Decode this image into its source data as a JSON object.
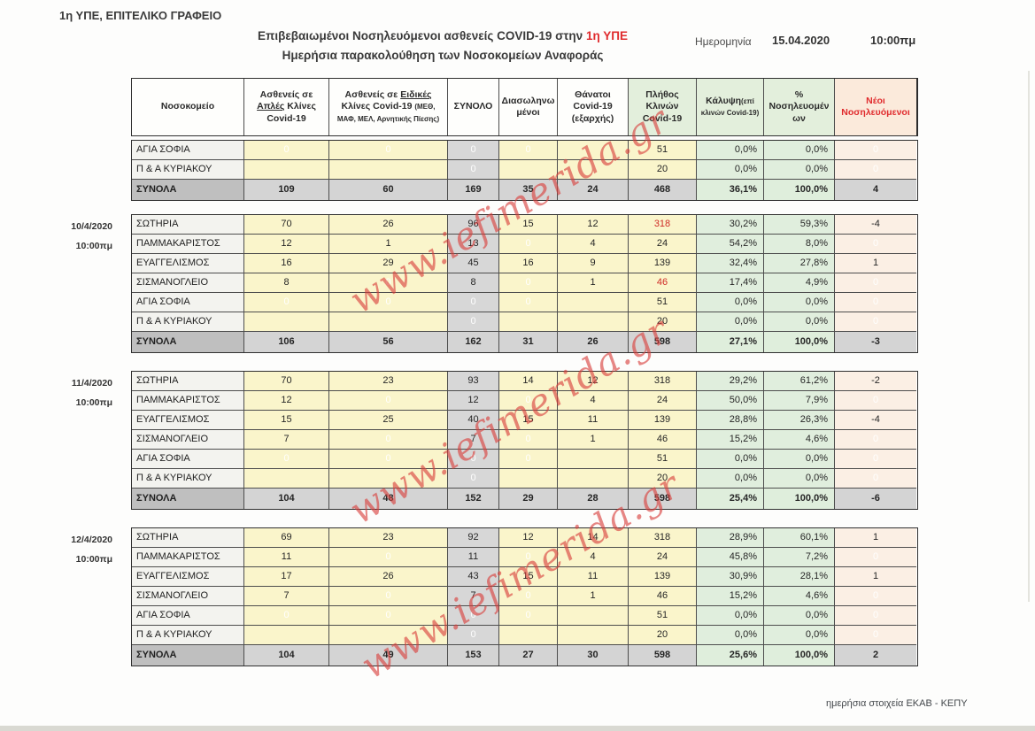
{
  "page": {
    "office": "1η ΥΠΕ, ΕΠΙΤΕΛΙΚΟ ΓΡΑΦΕΙΟ",
    "title_main": "Επιβεβαιωμένοι Νοσηλευόμενοι ασθενείς COVID-19 στην ",
    "title_highlight": "1η ΥΠΕ",
    "title_sub": "Ημερήσια παρακολούθηση  των Νοσοκομείων Αναφοράς",
    "date_label": "Ημερομηνία",
    "date_value": "15.04.2020",
    "time_value": "10:00πμ",
    "footer": "ημερήσια στοιχεία ΕΚΑΒ - ΚΕΠΥ",
    "watermark": "www.iefimerida.gr"
  },
  "colors": {
    "highlight_red": "#e02b2d",
    "watermark_red": "#d83e3a",
    "yellow_cell": "#faf5cb",
    "green_cell": "#e0eedd",
    "peach_cell": "#fbefe4",
    "grey_cell": "#d7d7d7"
  },
  "table": {
    "headers": [
      {
        "segs": [
          {
            "t": "Νοσοκομείο"
          }
        ],
        "style": "plain"
      },
      {
        "segs": [
          {
            "t": "Ασθενείς σε "
          },
          {
            "t": "Απλές",
            "u": true
          },
          {
            "t": " Κλίνες Covid-19"
          }
        ],
        "style": "plain"
      },
      {
        "segs": [
          {
            "t": "Ασθενείς σε "
          },
          {
            "t": "Ειδικές",
            "u": true
          },
          {
            "t": " Κλίνες Covid-19 "
          }
        ],
        "small": "(ΜΕΘ, ΜΑΦ, ΜΕΛ, Αρνητικής Πίεσης)",
        "style": "plain"
      },
      {
        "segs": [
          {
            "t": "ΣΥΝΟΛΟ"
          }
        ],
        "style": "plain"
      },
      {
        "segs": [
          {
            "t": "Διασωληνωμένοι"
          }
        ],
        "style": "plain"
      },
      {
        "segs": [
          {
            "t": "Θάνατοι Covid-19 (εξαρχής)"
          }
        ],
        "style": "plain"
      },
      {
        "segs": [
          {
            "t": "Πλήθος Κλινών Covid-19"
          }
        ],
        "style": "green"
      },
      {
        "segs": [
          {
            "t": "Κάλυψη"
          }
        ],
        "small": "(επί κλινών Covid-19)",
        "style": "green"
      },
      {
        "segs": [
          {
            "t": "% Νοσηλευομένων"
          }
        ],
        "style": "green"
      },
      {
        "segs": [
          {
            "t": "Νέοι Νοσηλευόμενοι"
          }
        ],
        "style": "new"
      }
    ],
    "blocks": [
      {
        "date": "",
        "time": "",
        "rows": [
          {
            "name": "ΑΓΙΑ ΣΟΦΙΑ",
            "cells": [
              "0",
              "0",
              "0",
              "0",
              "",
              "51",
              "0,0%",
              "0,0%",
              "0"
            ],
            "faint": [
              0,
              1,
              2,
              3,
              8
            ],
            "red": []
          },
          {
            "name": "Π & Α ΚΥΡΙΑΚΟΥ",
            "cells": [
              "",
              "",
              "0",
              "",
              "",
              "20",
              "0,0%",
              "0,0%",
              "0"
            ],
            "faint": [
              2,
              8
            ],
            "red": []
          }
        ],
        "totals": {
          "name": "ΣΥΝΟΛΑ",
          "cells": [
            "109",
            "60",
            "169",
            "35",
            "24",
            "468",
            "36,1%",
            "100,0%",
            "4"
          ]
        }
      },
      {
        "date": "10/4/2020",
        "time": "10:00πμ",
        "rows": [
          {
            "name": "ΣΩΤΗΡΙΑ",
            "cells": [
              "70",
              "26",
              "96",
              "15",
              "12",
              "318",
              "30,2%",
              "59,3%",
              "-4"
            ],
            "faint": [],
            "red": [
              5
            ]
          },
          {
            "name": "ΠΑΜΜΑΚΑΡΙΣΤΟΣ",
            "cells": [
              "12",
              "1",
              "13",
              "0",
              "4",
              "24",
              "54,2%",
              "8,0%",
              "0"
            ],
            "faint": [
              3,
              8
            ],
            "red": []
          },
          {
            "name": "ΕΥΑΓΓΕΛΙΣΜΟΣ",
            "cells": [
              "16",
              "29",
              "45",
              "16",
              "9",
              "139",
              "32,4%",
              "27,8%",
              "1"
            ],
            "faint": [],
            "red": []
          },
          {
            "name": "ΣΙΣΜΑΝΟΓΛΕΙΟ",
            "cells": [
              "8",
              "0",
              "8",
              "0",
              "1",
              "46",
              "17,4%",
              "4,9%",
              "0"
            ],
            "faint": [
              1,
              3,
              8
            ],
            "red": [
              5
            ]
          },
          {
            "name": "ΑΓΙΑ ΣΟΦΙΑ",
            "cells": [
              "0",
              "0",
              "0",
              "0",
              "",
              "51",
              "0,0%",
              "0,0%",
              "0"
            ],
            "faint": [
              0,
              1,
              2,
              3,
              8
            ],
            "red": []
          },
          {
            "name": "Π & Α ΚΥΡΙΑΚΟΥ",
            "cells": [
              "",
              "",
              "0",
              "",
              "",
              "20",
              "0,0%",
              "0,0%",
              "0"
            ],
            "faint": [
              2,
              8
            ],
            "red": []
          }
        ],
        "totals": {
          "name": "ΣΥΝΟΛΑ",
          "cells": [
            "106",
            "56",
            "162",
            "31",
            "26",
            "598",
            "27,1%",
            "100,0%",
            "-3"
          ]
        }
      },
      {
        "date": "11/4/2020",
        "time": "10:00πμ",
        "rows": [
          {
            "name": "ΣΩΤΗΡΙΑ",
            "cells": [
              "70",
              "23",
              "93",
              "14",
              "12",
              "318",
              "29,2%",
              "61,2%",
              "-2"
            ],
            "faint": [],
            "red": []
          },
          {
            "name": "ΠΑΜΜΑΚΑΡΙΣΤΟΣ",
            "cells": [
              "12",
              "0",
              "12",
              "0",
              "4",
              "24",
              "50,0%",
              "7,9%",
              "0"
            ],
            "faint": [
              1,
              3,
              8
            ],
            "red": []
          },
          {
            "name": "ΕΥΑΓΓΕΛΙΣΜΟΣ",
            "cells": [
              "15",
              "25",
              "40",
              "15",
              "11",
              "139",
              "28,8%",
              "26,3%",
              "-4"
            ],
            "faint": [],
            "red": []
          },
          {
            "name": "ΣΙΣΜΑΝΟΓΛΕΙΟ",
            "cells": [
              "7",
              "0",
              "7",
              "0",
              "1",
              "46",
              "15,2%",
              "4,6%",
              "0"
            ],
            "faint": [
              1,
              3,
              8
            ],
            "red": []
          },
          {
            "name": "ΑΓΙΑ ΣΟΦΙΑ",
            "cells": [
              "0",
              "0",
              "0",
              "0",
              "",
              "51",
              "0,0%",
              "0,0%",
              "0"
            ],
            "faint": [
              0,
              1,
              2,
              3,
              8
            ],
            "red": []
          },
          {
            "name": "Π & Α ΚΥΡΙΑΚΟΥ",
            "cells": [
              "",
              "",
              "0",
              "",
              "",
              "20",
              "0,0%",
              "0,0%",
              "0"
            ],
            "faint": [
              2,
              8
            ],
            "red": []
          }
        ],
        "totals": {
          "name": "ΣΥΝΟΛΑ",
          "cells": [
            "104",
            "48",
            "152",
            "29",
            "28",
            "598",
            "25,4%",
            "100,0%",
            "-6"
          ]
        }
      },
      {
        "date": "12/4/2020",
        "time": "10:00πμ",
        "rows": [
          {
            "name": "ΣΩΤΗΡΙΑ",
            "cells": [
              "69",
              "23",
              "92",
              "12",
              "14",
              "318",
              "28,9%",
              "60,1%",
              "1"
            ],
            "faint": [],
            "red": []
          },
          {
            "name": "ΠΑΜΜΑΚΑΡΙΣΤΟΣ",
            "cells": [
              "11",
              "0",
              "11",
              "0",
              "4",
              "24",
              "45,8%",
              "7,2%",
              "0"
            ],
            "faint": [
              1,
              3,
              8
            ],
            "red": []
          },
          {
            "name": "ΕΥΑΓΓΕΛΙΣΜΟΣ",
            "cells": [
              "17",
              "26",
              "43",
              "15",
              "11",
              "139",
              "30,9%",
              "28,1%",
              "1"
            ],
            "faint": [],
            "red": []
          },
          {
            "name": "ΣΙΣΜΑΝΟΓΛΕΙΟ",
            "cells": [
              "7",
              "0",
              "7",
              "0",
              "1",
              "46",
              "15,2%",
              "4,6%",
              "0"
            ],
            "faint": [
              1,
              3,
              8
            ],
            "red": []
          },
          {
            "name": "ΑΓΙΑ ΣΟΦΙΑ",
            "cells": [
              "0",
              "0",
              "0",
              "0",
              "",
              "51",
              "0,0%",
              "0,0%",
              "0"
            ],
            "faint": [
              0,
              1,
              2,
              3,
              8
            ],
            "red": []
          },
          {
            "name": "Π & Α ΚΥΡΙΑΚΟΥ",
            "cells": [
              "",
              "",
              "0",
              "",
              "",
              "20",
              "0,0%",
              "0,0%",
              "0"
            ],
            "faint": [
              2,
              8
            ],
            "red": []
          }
        ],
        "totals": {
          "name": "ΣΥΝΟΛΑ",
          "cells": [
            "104",
            "49",
            "153",
            "27",
            "30",
            "598",
            "25,6%",
            "100,0%",
            "2"
          ]
        }
      }
    ]
  }
}
